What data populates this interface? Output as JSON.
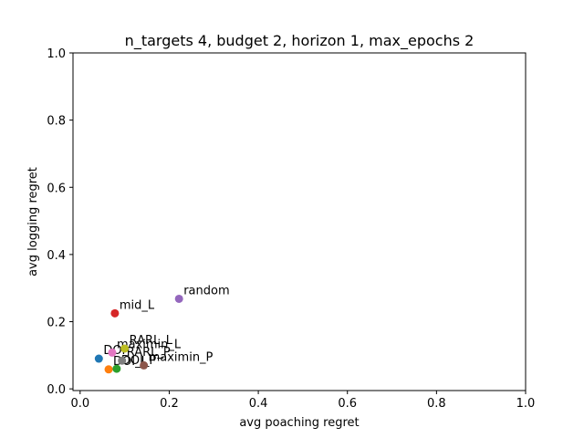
{
  "chart_data": {
    "type": "scatter",
    "title": "n_targets 4, budget 2, horizon 1, max_epochs 2",
    "xlabel": "avg poaching regret",
    "ylabel": "avg logging regret",
    "xlim": [
      0.0,
      1.0
    ],
    "ylim": [
      0.0,
      1.0
    ],
    "xticks": [
      "0.0",
      "0.2",
      "0.4",
      "0.6",
      "0.8",
      "1.0"
    ],
    "yticks": [
      "0.0",
      "0.2",
      "0.4",
      "0.6",
      "0.8",
      "1.0"
    ],
    "grid": false,
    "points": [
      {
        "label": "DOI",
        "x": 0.042,
        "y": 0.09,
        "color": "#1f77b4"
      },
      {
        "label": "DOI_L",
        "x": 0.064,
        "y": 0.058,
        "color": "#ff7f0e"
      },
      {
        "label": "DOI_P",
        "x": 0.082,
        "y": 0.06,
        "color": "#2ca02c"
      },
      {
        "label": "mid_L",
        "x": 0.078,
        "y": 0.225,
        "color": "#d62728"
      },
      {
        "label": "random",
        "x": 0.222,
        "y": 0.268,
        "color": "#9467bd"
      },
      {
        "label": "maximin_P",
        "x": 0.143,
        "y": 0.07,
        "color": "#8c564b"
      },
      {
        "label": "maximin_L",
        "x": 0.072,
        "y": 0.108,
        "color": "#e377c2"
      },
      {
        "label": "RARL_P",
        "x": 0.094,
        "y": 0.084,
        "color": "#7f7f7f"
      },
      {
        "label": "RARL_L",
        "x": 0.1,
        "y": 0.12,
        "color": "#bcbd22"
      }
    ]
  }
}
